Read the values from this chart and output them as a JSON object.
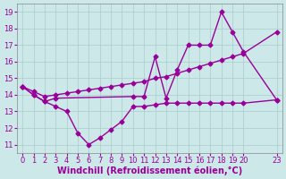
{
  "xlabel": "Windchill (Refroidissement éolien,°C)",
  "bg_color": "#cce8e8",
  "line_color": "#990099",
  "xlim": [
    -0.5,
    23.5
  ],
  "ylim": [
    10.5,
    19.5
  ],
  "xticks": [
    0,
    1,
    2,
    3,
    4,
    5,
    6,
    7,
    8,
    9,
    10,
    11,
    12,
    13,
    14,
    15,
    16,
    17,
    18,
    19,
    20,
    23
  ],
  "yticks": [
    11,
    12,
    13,
    14,
    15,
    16,
    17,
    18,
    19
  ],
  "line_diagonal_x": [
    0,
    1,
    2,
    3,
    4,
    5,
    6,
    7,
    8,
    9,
    10,
    11,
    12,
    13,
    14,
    15,
    16,
    17,
    18,
    19,
    20,
    23
  ],
  "line_diagonal_y": [
    14.5,
    14.2,
    13.9,
    14.0,
    14.1,
    14.2,
    14.3,
    14.4,
    14.5,
    14.6,
    14.7,
    14.8,
    15.0,
    15.1,
    15.3,
    15.5,
    15.7,
    15.9,
    16.1,
    16.3,
    16.5,
    17.8
  ],
  "line_valley_x": [
    0,
    1,
    2,
    3,
    4,
    5,
    6,
    7,
    8,
    9,
    10,
    11,
    12,
    13,
    14,
    15,
    16,
    17,
    18,
    19,
    20,
    23
  ],
  "line_valley_y": [
    14.5,
    14.0,
    13.6,
    13.3,
    13.0,
    11.7,
    11.0,
    11.4,
    11.9,
    12.4,
    13.3,
    13.3,
    13.4,
    13.5,
    13.5,
    13.5,
    13.5,
    13.5,
    13.5,
    13.5,
    13.5,
    13.7
  ],
  "line_peak_x": [
    0,
    1,
    2,
    3,
    10,
    11,
    12,
    13,
    14,
    15,
    16,
    17,
    18,
    19,
    20,
    23
  ],
  "line_peak_y": [
    14.5,
    14.0,
    13.6,
    13.8,
    13.9,
    13.9,
    16.3,
    13.8,
    15.5,
    17.0,
    17.0,
    17.0,
    19.0,
    17.8,
    16.6,
    13.7
  ],
  "marker": "D",
  "markersize": 2.5,
  "linewidth": 1.0,
  "tick_fontsize": 6.0,
  "xlabel_fontsize": 7.0
}
